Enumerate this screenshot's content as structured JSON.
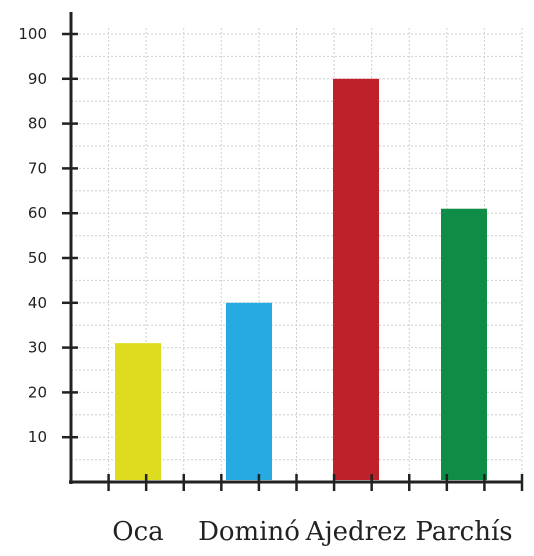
{
  "chart_data": {
    "type": "bar",
    "categories": [
      "Oca",
      "Dominó",
      "Ajedrez",
      "Parchís"
    ],
    "values": [
      31,
      40,
      90,
      61
    ],
    "colors": [
      "#dedc1f",
      "#27a9e1",
      "#c0202a",
      "#0f8c45"
    ],
    "ylim": [
      0,
      100
    ],
    "yticks": [
      10,
      20,
      30,
      40,
      50,
      60,
      70,
      80,
      90,
      100
    ],
    "ytick_labels": [
      "10",
      "20",
      "30",
      "40",
      "50",
      "60",
      "70",
      "80",
      "90",
      "100"
    ],
    "grid": true,
    "title": "",
    "xlabel": "",
    "ylabel": ""
  }
}
